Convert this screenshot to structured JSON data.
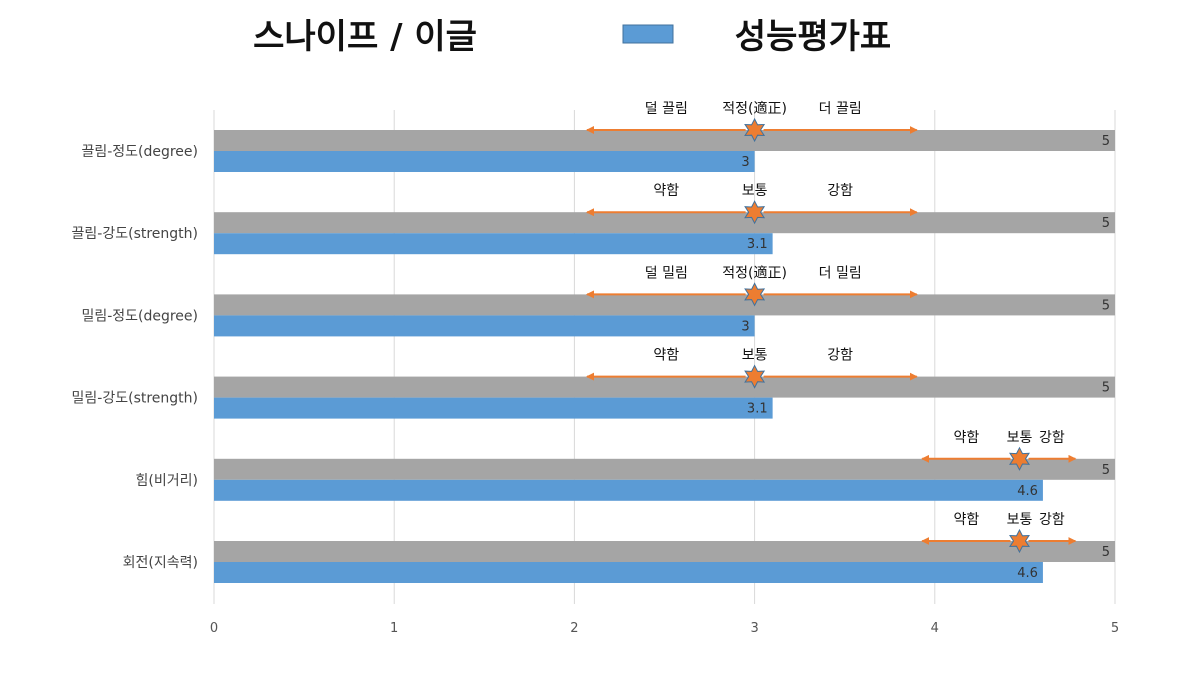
{
  "chart_data": {
    "type": "bar",
    "orientation": "horizontal",
    "title_left": "스나이프 / 이글",
    "title_right": "성능평가표",
    "categories": [
      "끌림-정도(degree)",
      "끌림-강도(strength)",
      "밀림-정도(degree)",
      "밀림-강도(strength)",
      "힘(비거리)",
      "회전(지속력)"
    ],
    "series": [
      {
        "values": [
          5,
          5,
          5,
          5,
          5,
          5
        ],
        "color": "#a5a5a5"
      },
      {
        "values": [
          3,
          3.1,
          3,
          3.1,
          4.6,
          4.6
        ],
        "color": "#5b9bd5"
      }
    ],
    "legend_position": "top-center",
    "xlim": [
      0,
      5
    ],
    "xticks": [
      "0",
      "1",
      "2",
      "3",
      "4",
      "5"
    ],
    "grid": true,
    "annotation_color": "#ed7d31",
    "annotations": [
      {
        "left": "덜 끌림",
        "center": "적정(適正)",
        "right": "더 끌림",
        "marker_value": 3,
        "arrow_from": 2.07,
        "arrow_to": 3.9
      },
      {
        "left": "약함",
        "center": "보통",
        "right": "강함",
        "marker_value": 3,
        "arrow_from": 2.07,
        "arrow_to": 3.9
      },
      {
        "left": "덜 밀림",
        "center": "적정(適正)",
        "right": "더 밀림",
        "marker_value": 3,
        "arrow_from": 2.07,
        "arrow_to": 3.9
      },
      {
        "left": "약함",
        "center": "보통",
        "right": "강함",
        "marker_value": 3,
        "arrow_from": 2.07,
        "arrow_to": 3.9
      },
      {
        "left": "약함",
        "center": "보통",
        "right": "강함",
        "marker_value": 4.47,
        "arrow_from": 3.93,
        "arrow_to": 4.78
      },
      {
        "left": "약함",
        "center": "보통",
        "right": "강함",
        "marker_value": 4.47,
        "arrow_from": 3.93,
        "arrow_to": 4.78
      }
    ]
  }
}
